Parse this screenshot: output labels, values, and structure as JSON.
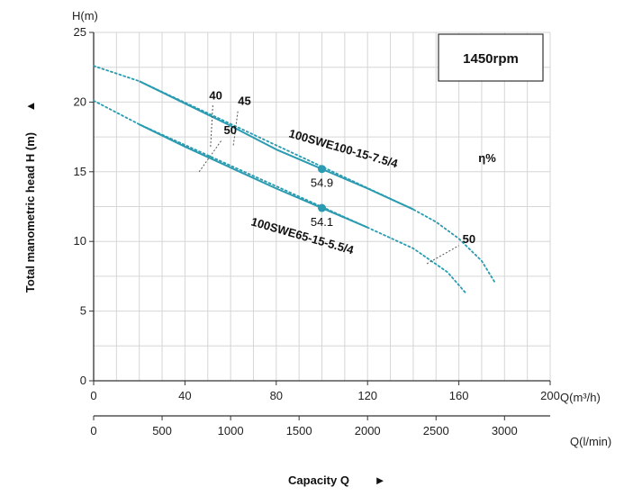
{
  "chart_data": {
    "type": "line",
    "speed_label": "1450rpm",
    "eta_label": "η%",
    "y_axis": {
      "unit_label": "H(m)",
      "title": "Total manometric head H (m)",
      "arrow": "▲",
      "range": [
        0,
        25
      ],
      "ticks": [
        0,
        5,
        10,
        15,
        20,
        25
      ]
    },
    "x_axis": {
      "unit_label": "Q(m³/h)",
      "range": [
        0,
        200
      ],
      "ticks": [
        0,
        40,
        80,
        120,
        160,
        200
      ]
    },
    "x_axis_secondary": {
      "unit_label": "Q(l/min)",
      "ticks": [
        0,
        500,
        1000,
        1500,
        2000,
        2500,
        3000
      ],
      "per_m3h": 16.6667
    },
    "capacity_title": "Capacity Q",
    "capacity_arrow": "►",
    "grid": true,
    "colors": {
      "curve": "#2a9bb0",
      "grid": "#d6d6d6",
      "axis": "#333333",
      "iso": "#555555"
    },
    "series": [
      {
        "name": "100SWE100-15-7.5/4",
        "solid": [
          [
            20,
            21.5
          ],
          [
            40,
            19.9
          ],
          [
            60,
            18.3
          ],
          [
            80,
            16.6
          ],
          [
            100,
            15.2
          ],
          [
            120,
            13.8
          ],
          [
            140,
            12.3
          ]
        ],
        "dotted": [
          [
            0,
            22.6
          ],
          [
            20,
            21.5
          ],
          [
            140,
            12.3
          ],
          [
            150,
            11.4
          ],
          [
            160,
            10.2
          ],
          [
            170,
            8.6
          ],
          [
            176,
            7.0
          ]
        ],
        "operating_point": {
          "x": 100,
          "y": 15.2,
          "label": "54.9"
        }
      },
      {
        "name": "100SWE65-15-5.5/4",
        "solid": [
          [
            20,
            18.4
          ],
          [
            40,
            16.8
          ],
          [
            60,
            15.3
          ],
          [
            80,
            13.8
          ],
          [
            100,
            12.4
          ],
          [
            120,
            11.0
          ]
        ],
        "dotted": [
          [
            0,
            20.1
          ],
          [
            20,
            18.4
          ],
          [
            120,
            11.0
          ],
          [
            140,
            9.5
          ],
          [
            155,
            7.8
          ],
          [
            163,
            6.3
          ]
        ],
        "operating_point": {
          "x": 100,
          "y": 12.4,
          "label": "54.1"
        }
      }
    ],
    "efficiency_lines": [
      {
        "label": "40",
        "from": [
          67,
          16.8
        ],
        "to": [
          68,
          19.8
        ]
      },
      {
        "label": "45",
        "from": [
          77,
          16.9
        ],
        "to": [
          79,
          19.4
        ]
      },
      {
        "label": "50",
        "from": [
          62,
          15.0
        ],
        "to": [
          72,
          17.3
        ]
      },
      {
        "label": "50",
        "from": [
          146,
          8.4
        ],
        "to": [
          160,
          9.7
        ]
      }
    ]
  }
}
